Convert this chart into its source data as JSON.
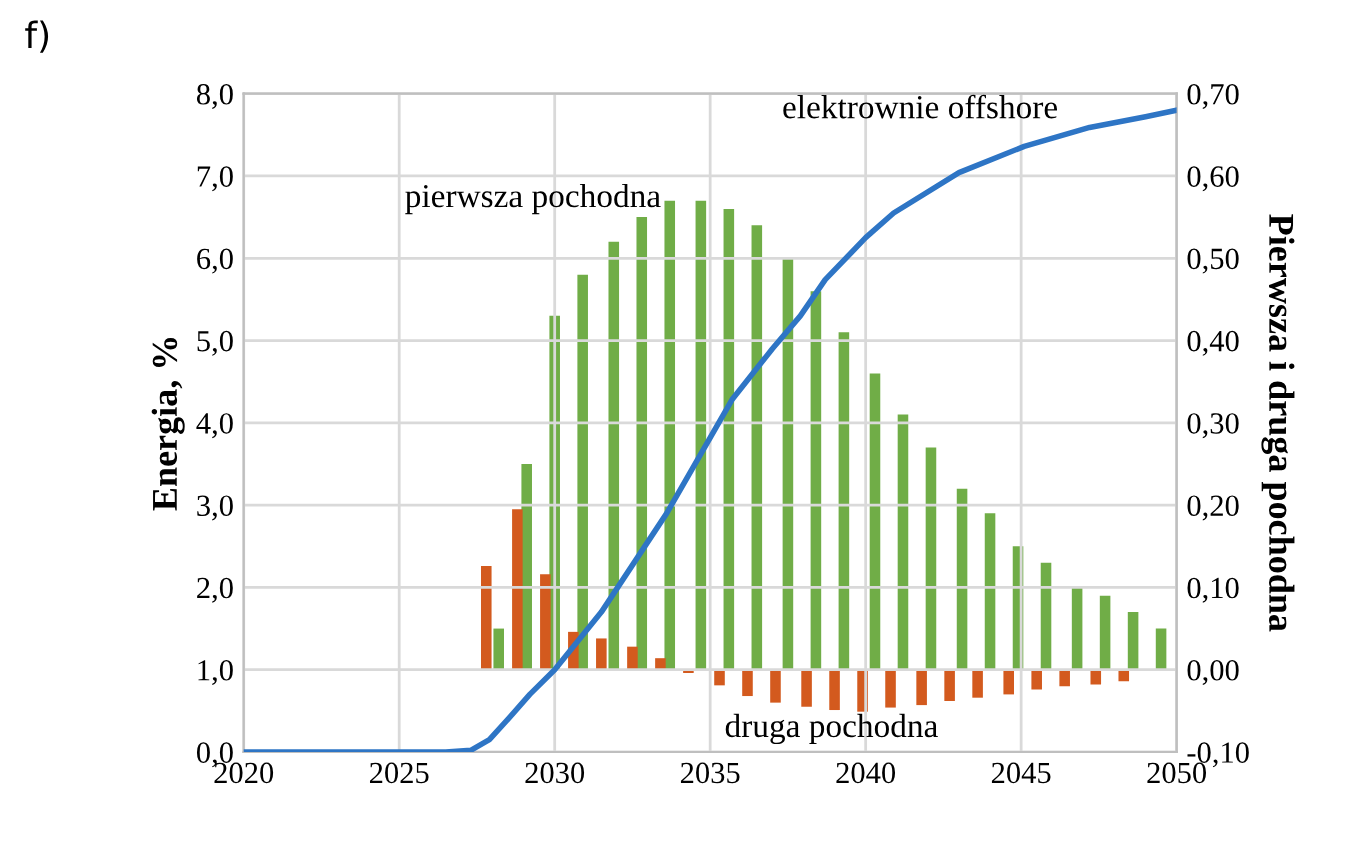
{
  "chart_data": {
    "type": "line",
    "xlabel": null,
    "ylabel": "Energia, %",
    "y2label": "Pierwsza i druga pochodna",
    "annotations": [
      "f)"
    ],
    "xlim": [
      2020,
      2050
    ],
    "xticks": [
      2020,
      2025,
      2030,
      2035,
      2040,
      2045,
      2050
    ],
    "ylim": [
      0,
      8
    ],
    "yticks": [
      {
        "value": 0,
        "label": "0,0"
      },
      {
        "value": 1,
        "label": "1,0"
      },
      {
        "value": 2,
        "label": "2,0"
      },
      {
        "value": 3,
        "label": "3,0"
      },
      {
        "value": 4,
        "label": "4,0"
      },
      {
        "value": 5,
        "label": "5,0"
      },
      {
        "value": 6,
        "label": "6,0"
      },
      {
        "value": 7,
        "label": "7,0"
      },
      {
        "value": 8,
        "label": "8,0"
      }
    ],
    "y2lim": [
      -0.1,
      0.7
    ],
    "y2ticks": [
      {
        "value": -0.1,
        "label": "-0,10"
      },
      {
        "value": 0,
        "label": "0,00"
      },
      {
        "value": 0.1,
        "label": "0,10"
      },
      {
        "value": 0.2,
        "label": "0,20"
      },
      {
        "value": 0.3,
        "label": "0,30"
      },
      {
        "value": 0.4,
        "label": "0,40"
      },
      {
        "value": 0.5,
        "label": "0,50"
      },
      {
        "value": 0.6,
        "label": "0,60"
      },
      {
        "value": 0.7,
        "label": "0,70"
      }
    ],
    "grid": true,
    "legend": false,
    "marker": "none",
    "line_style": "solid",
    "series": [
      {
        "name": "pierwsza pochodna",
        "type": "bar",
        "axis": "y2",
        "color": "#70ad47",
        "x": [
          2028.2,
          2029.1,
          2030.0,
          2030.9,
          2031.9,
          2032.8,
          2033.7,
          2034.7,
          2035.6,
          2036.5,
          2037.5,
          2038.4,
          2039.3,
          2040.3,
          2041.2,
          2042.1,
          2043.1,
          2044.0,
          2044.9,
          2045.8,
          2046.8,
          2047.7,
          2048.6,
          2049.5
        ],
        "values": [
          0.05,
          0.25,
          0.43,
          0.48,
          0.52,
          0.55,
          0.57,
          0.57,
          0.56,
          0.54,
          0.5,
          0.46,
          0.41,
          0.36,
          0.31,
          0.27,
          0.22,
          0.19,
          0.15,
          0.13,
          0.1,
          0.09,
          0.07,
          0.05
        ]
      },
      {
        "name": "druga pochodna",
        "type": "bar",
        "axis": "y2",
        "color": "#d35a1e",
        "x": [
          2027.8,
          2028.8,
          2029.7,
          2030.6,
          2031.5,
          2032.5,
          2033.4,
          2034.3,
          2035.3,
          2036.2,
          2037.1,
          2038.1,
          2039.0,
          2039.9,
          2040.8,
          2041.8,
          2042.7,
          2043.6,
          2044.6,
          2045.5,
          2046.4,
          2047.4,
          2048.3
        ],
        "values": [
          0.126,
          0.195,
          0.116,
          0.046,
          0.038,
          0.028,
          0.014,
          -0.004,
          -0.019,
          -0.032,
          -0.04,
          -0.045,
          -0.049,
          -0.051,
          -0.046,
          -0.043,
          -0.038,
          -0.034,
          -0.03,
          -0.024,
          -0.02,
          -0.018,
          -0.014
        ]
      },
      {
        "name": "elektrownie offshore",
        "color": "#2e75c5",
        "x": [
          2020,
          2026.5,
          2027.3,
          2027.9,
          2028.5,
          2029.2,
          2030,
          2031.5,
          2033.6,
          2035.7,
          2037,
          2037.9,
          2038.7,
          2040,
          2040.9,
          2043,
          2045.1,
          2047.2,
          2049,
          2050
        ],
        "values": [
          0,
          0,
          0.02,
          0.15,
          0.4,
          0.7,
          1.0,
          1.7,
          2.9,
          4.28,
          4.9,
          5.3,
          5.74,
          6.25,
          6.55,
          7.04,
          7.36,
          7.59,
          7.72,
          7.8
        ]
      }
    ]
  }
}
